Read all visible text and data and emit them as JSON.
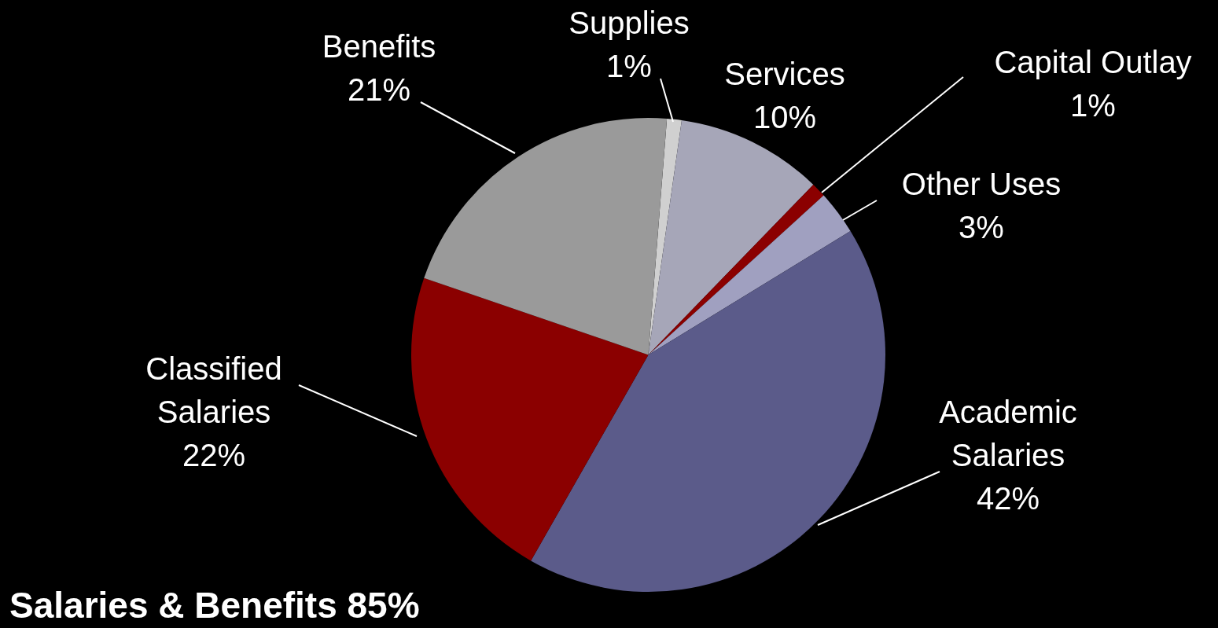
{
  "chart_data": {
    "type": "pie",
    "categories": [
      "Supplies",
      "Services",
      "Capital Outlay",
      "Other Uses",
      "Academic Salaries",
      "Classified Salaries",
      "Benefits"
    ],
    "values": [
      1,
      10,
      1,
      3,
      42,
      22,
      21
    ],
    "value_labels": [
      "1%",
      "10%",
      "1%",
      "3%",
      "42%",
      "22%",
      "21%"
    ],
    "colors": [
      "#d0d0d0",
      "#a6a6b8",
      "#8b0000",
      "#a0a0c0",
      "#5b5b8a",
      "#8b0000",
      "#9a9a9a"
    ],
    "annotations": [
      "Salaries & Benefits 85%"
    ],
    "legend": false
  }
}
